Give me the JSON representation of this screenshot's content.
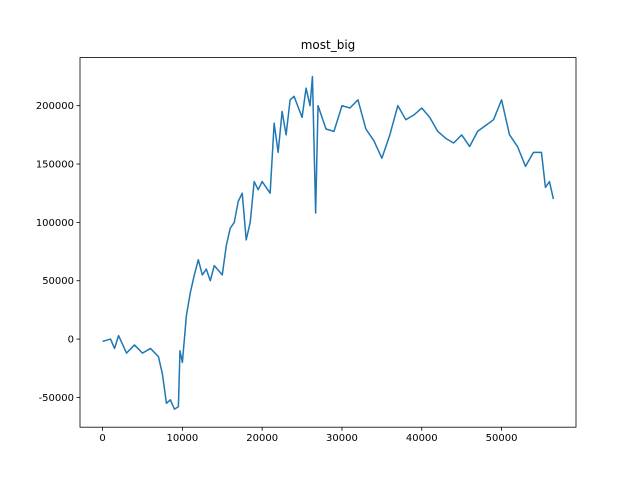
{
  "chart_data": {
    "type": "line",
    "title": "most_big",
    "x": [
      0,
      1000,
      1500,
      2000,
      3000,
      4000,
      5000,
      6000,
      7000,
      7500,
      8000,
      8500,
      9000,
      9500,
      9700,
      10000,
      10500,
      11000,
      11500,
      12000,
      12500,
      13000,
      13500,
      14000,
      15000,
      15500,
      16000,
      16500,
      17000,
      17500,
      18000,
      18500,
      19000,
      19500,
      20000,
      21000,
      21500,
      22000,
      22500,
      23000,
      23500,
      24000,
      25000,
      25500,
      26000,
      26300,
      26700,
      27000,
      27500,
      28000,
      29000,
      30000,
      31000,
      32000,
      33000,
      34000,
      35000,
      36000,
      37000,
      38000,
      39000,
      40000,
      41000,
      42000,
      43000,
      44000,
      45000,
      46000,
      47000,
      48000,
      49000,
      50000,
      51000,
      52000,
      53000,
      54000,
      55000,
      55500,
      56000,
      56500
    ],
    "series": [
      {
        "color": "#1f77b4",
        "values": [
          -2000,
          0,
          -8000,
          3000,
          -12000,
          -5000,
          -12000,
          -8000,
          -15000,
          -30000,
          -55000,
          -52000,
          -60000,
          -58000,
          -10000,
          -20000,
          20000,
          40000,
          55000,
          68000,
          55000,
          60000,
          50000,
          63000,
          55000,
          80000,
          95000,
          100000,
          118000,
          125000,
          85000,
          100000,
          135000,
          128000,
          135000,
          125000,
          185000,
          160000,
          195000,
          175000,
          205000,
          208000,
          190000,
          215000,
          200000,
          225000,
          108000,
          200000,
          190000,
          180000,
          178000,
          200000,
          198000,
          205000,
          180000,
          170000,
          155000,
          175000,
          200000,
          188000,
          192000,
          198000,
          190000,
          178000,
          172000,
          168000,
          175000,
          165000,
          178000,
          183000,
          188000,
          205000,
          175000,
          165000,
          148000,
          160000,
          160000,
          130000,
          135000,
          120000
        ]
      }
    ],
    "xlim": [
      -2830,
      59330
    ],
    "ylim": [
      -75500,
      241200
    ],
    "xticks": [
      0,
      10000,
      20000,
      30000,
      40000,
      50000
    ],
    "yticks": [
      -50000,
      0,
      50000,
      100000,
      150000,
      200000
    ]
  }
}
